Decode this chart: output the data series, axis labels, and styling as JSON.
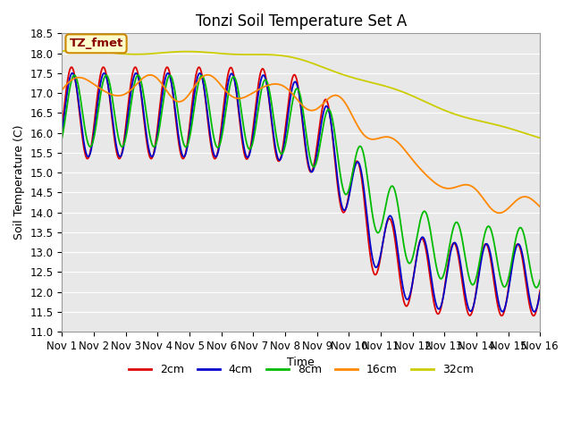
{
  "title": "Tonzi Soil Temperature Set A",
  "xlabel": "Time",
  "ylabel": "Soil Temperature (C)",
  "ylim": [
    11.0,
    18.5
  ],
  "xlim": [
    0,
    15
  ],
  "xtick_labels": [
    "Nov 1",
    "Nov 2",
    "Nov 3",
    "Nov 4",
    "Nov 5",
    "Nov 6",
    "Nov 7",
    "Nov 8",
    "Nov 9",
    "Nov 10",
    "Nov 11",
    "Nov 12",
    "Nov 13",
    "Nov 14",
    "Nov 15",
    "Nov 16"
  ],
  "ytick_values": [
    11.0,
    11.5,
    12.0,
    12.5,
    13.0,
    13.5,
    14.0,
    14.5,
    15.0,
    15.5,
    16.0,
    16.5,
    17.0,
    17.5,
    18.0,
    18.5
  ],
  "series_labels": [
    "2cm",
    "4cm",
    "8cm",
    "16cm",
    "32cm"
  ],
  "series_colors": [
    "#dd0000",
    "#0000cc",
    "#00bb00",
    "#ff8800",
    "#cccc00"
  ],
  "line_widths": [
    1.3,
    1.3,
    1.3,
    1.3,
    1.3
  ],
  "annotation_label": "TZ_fmet",
  "annotation_bg": "#ffffcc",
  "annotation_border": "#cc8800",
  "annotation_text_color": "#880000",
  "plot_bg_color": "#e8e8e8",
  "grid_color": "#ffffff",
  "title_fontsize": 12,
  "axis_label_fontsize": 9,
  "tick_fontsize": 8.5,
  "legend_fontsize": 9
}
